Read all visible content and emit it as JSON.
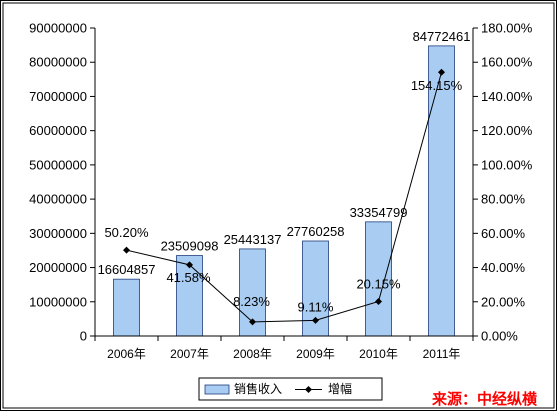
{
  "chart_data": {
    "type": "bar",
    "categories": [
      "2006年",
      "2007年",
      "2008年",
      "2009年",
      "2010年",
      "2011年"
    ],
    "series": [
      {
        "name": "销售收入",
        "type": "bar",
        "axis": "left",
        "values": [
          16604857,
          23509098,
          25443137,
          27760258,
          33354799,
          84772461
        ],
        "labels": [
          "16604857",
          "23509098",
          "25443137",
          "27760258",
          "33354799",
          "84772461"
        ]
      },
      {
        "name": "增幅",
        "type": "line",
        "axis": "right",
        "values": [
          50.2,
          41.58,
          8.23,
          9.11,
          20.15,
          154.15
        ],
        "labels": [
          "50.20%",
          "41.58%",
          "8.23%",
          "9.11%",
          "20.15%",
          "154.15%"
        ]
      }
    ],
    "y_left": {
      "ylim": [
        0,
        90000000
      ],
      "ticks": [
        "0",
        "10000000",
        "20000000",
        "30000000",
        "40000000",
        "50000000",
        "60000000",
        "70000000",
        "80000000",
        "90000000"
      ]
    },
    "y_right": {
      "ylim": [
        0,
        180
      ],
      "ticks": [
        "0.00%",
        "20.00%",
        "40.00%",
        "60.00%",
        "80.00%",
        "100.00%",
        "120.00%",
        "140.00%",
        "160.00%",
        "180.00%"
      ]
    },
    "grid": false,
    "legend": "bottom-center"
  },
  "source_note": "来源：中经纵横",
  "colors": {
    "bar_fill": "#a9cdf2",
    "bar_stroke": "#1f3c7a",
    "line": "#000000",
    "source_text": "#ff0000",
    "frame_outer": "#000000",
    "frame_inner": "#ffffff"
  }
}
